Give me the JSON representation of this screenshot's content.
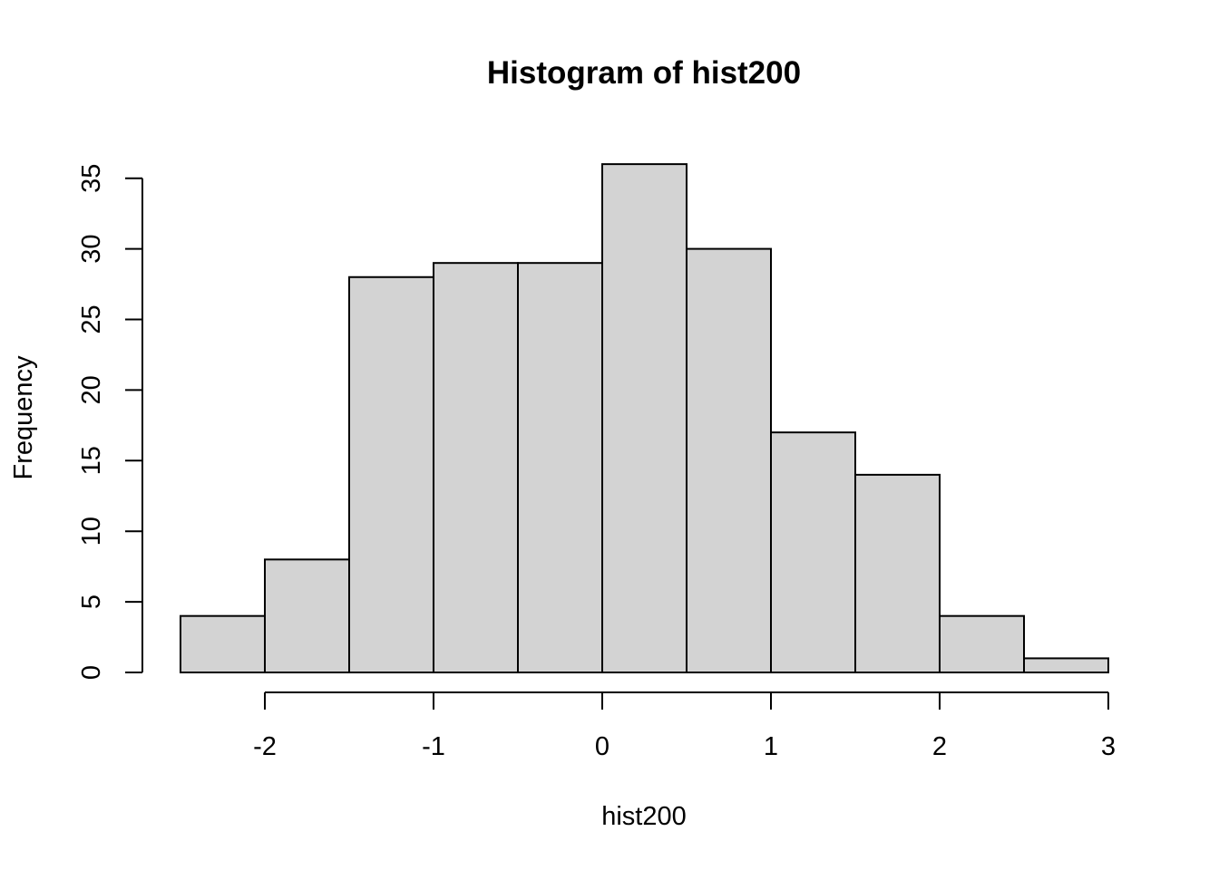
{
  "chart_data": {
    "type": "bar",
    "title": "Histogram of hist200",
    "xlabel": "hist200",
    "ylabel": "Frequency",
    "bin_edges": [
      -2.5,
      -2,
      -1.5,
      -1,
      -0.5,
      0,
      0.5,
      1,
      1.5,
      2,
      2.5,
      3
    ],
    "values": [
      4,
      8,
      28,
      29,
      29,
      36,
      30,
      17,
      14,
      4,
      1
    ],
    "x_ticks": [
      -2,
      -1,
      0,
      1,
      2,
      3
    ],
    "y_ticks": [
      0,
      5,
      10,
      15,
      20,
      25,
      30,
      35
    ],
    "xlim": [
      -2.5,
      3
    ],
    "ylim": [
      0,
      36
    ],
    "grid": false,
    "bar_color": "#d3d3d3",
    "border_color": "#000000"
  }
}
